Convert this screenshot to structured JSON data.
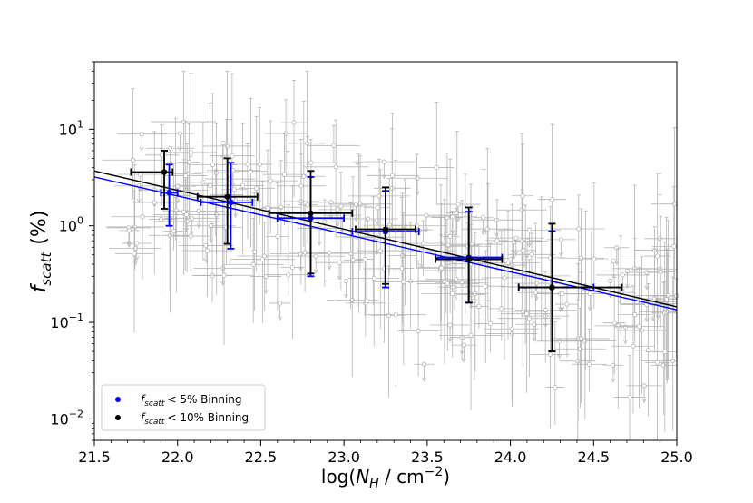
{
  "chart_data": {
    "type": "scatter",
    "xlabel_parts": {
      "prefix": "log",
      "open": "(",
      "var": "N",
      "sub": "H",
      "slash": " / ",
      "unit": "cm",
      "exp": "−2",
      "close": ")"
    },
    "ylabel_parts": {
      "var": "f",
      "sub": "scatt",
      "unit": "(%)"
    },
    "xlim": [
      21.5,
      25.0
    ],
    "ylim": [
      0.006,
      50
    ],
    "yscale": "log",
    "xticks": [
      "21.5",
      "22.0",
      "22.5",
      "23.0",
      "23.5",
      "24.0",
      "24.5",
      "25.0"
    ],
    "yticks": [
      {
        "base": "10",
        "exp": "1",
        "value": 10
      },
      {
        "base": "10",
        "exp": "0",
        "value": 1
      },
      {
        "base": "10",
        "exp": "−1",
        "value": 0.1
      },
      {
        "base": "10",
        "exp": "−2",
        "value": 0.01
      }
    ],
    "grid": false,
    "legend_position": "lower-left",
    "series": [
      {
        "name": "< 5% Binning",
        "name_var": "f",
        "name_sub": "scatt",
        "color": "#0000ff",
        "fit_line": {
          "x": [
            21.5,
            25.0
          ],
          "y": [
            3.2,
            0.135
          ]
        },
        "points": [
          {
            "x": 21.95,
            "y": 2.2,
            "xerr": [
              0.05,
              0.05
            ],
            "yerr": [
              1.0,
              4.3
            ]
          },
          {
            "x": 22.32,
            "y": 1.75,
            "xerr": [
              0.18,
              0.13
            ],
            "yerr": [
              0.58,
              4.5
            ]
          },
          {
            "x": 22.8,
            "y": 1.2,
            "xerr": [
              0.2,
              0.2
            ],
            "yerr": [
              0.3,
              3.2
            ]
          },
          {
            "x": 23.25,
            "y": 0.87,
            "xerr": [
              0.2,
              0.2
            ],
            "yerr": [
              0.23,
              2.3
            ]
          },
          {
            "x": 23.75,
            "y": 0.47,
            "xerr": [
              0.2,
              0.2
            ],
            "yerr": [
              0.16,
              1.4
            ]
          },
          {
            "x": 24.25,
            "y": 0.23,
            "xerr": [
              0.2,
              0.25
            ],
            "yerr": [
              0.05,
              0.88
            ]
          }
        ]
      },
      {
        "name": "< 10% Binning",
        "name_var": "f",
        "name_sub": "scatt",
        "color": "#000000",
        "fit_line": {
          "x": [
            21.5,
            25.0
          ],
          "y": [
            3.7,
            0.145
          ]
        },
        "points": [
          {
            "x": 21.92,
            "y": 3.6,
            "xerr": [
              0.2,
              0.05
            ],
            "yerr": [
              1.5,
              6.0
            ]
          },
          {
            "x": 22.3,
            "y": 2.0,
            "xerr": [
              0.18,
              0.18
            ],
            "yerr": [
              0.65,
              5.0
            ]
          },
          {
            "x": 22.8,
            "y": 1.35,
            "xerr": [
              0.25,
              0.25
            ],
            "yerr": [
              0.32,
              3.7
            ]
          },
          {
            "x": 23.25,
            "y": 0.92,
            "xerr": [
              0.18,
              0.18
            ],
            "yerr": [
              0.25,
              2.5
            ]
          },
          {
            "x": 23.75,
            "y": 0.45,
            "xerr": [
              0.2,
              0.2
            ],
            "yerr": [
              0.16,
              1.55
            ]
          },
          {
            "x": 24.25,
            "y": 0.23,
            "xerr": [
              0.2,
              0.42
            ],
            "yerr": [
              0.05,
              1.05
            ]
          }
        ]
      }
    ],
    "background_points": {
      "color": "#b4b4b4",
      "count": 260,
      "description_x_range": [
        21.7,
        25.0
      ],
      "seed": 12345
    }
  }
}
